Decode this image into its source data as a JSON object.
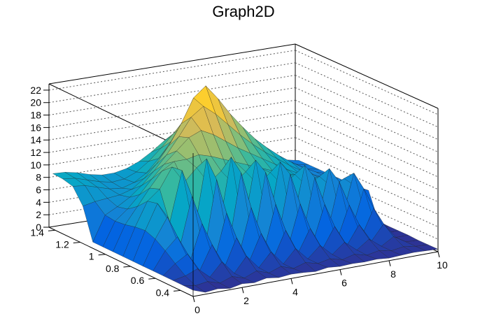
{
  "chart_data": {
    "type": "surface3d",
    "title": "Graph2D",
    "xlabel": "",
    "ylabel": "",
    "zlabel": "",
    "xlim": [
      0,
      10
    ],
    "ylim": [
      0.3,
      1.45
    ],
    "zlim": [
      0,
      23
    ],
    "x_ticks": [
      "0",
      "2",
      "4",
      "6",
      "8",
      "10"
    ],
    "y_ticks": [
      "0.4",
      "0.6",
      "0.8",
      "1",
      "1.2",
      "1.4"
    ],
    "z_ticks": [
      "0",
      "2",
      "4",
      "6",
      "8",
      "10",
      "12",
      "14",
      "16",
      "18",
      "20",
      "22"
    ],
    "grid": true,
    "colormap": [
      "#352a87",
      "#0363e1",
      "#1485d4",
      "#06a7c6",
      "#38b99e",
      "#92bf73",
      "#d9ba56",
      "#fcce2e",
      "#f9fb0e"
    ],
    "x_grid": [
      0,
      0.5,
      1,
      1.5,
      2,
      2.5,
      3,
      3.5,
      4,
      4.5,
      5,
      5.5,
      6,
      6.5,
      7,
      7.5,
      8,
      8.5,
      9,
      9.5,
      10
    ],
    "y_grid": [
      0.3,
      0.38,
      0.46,
      0.54,
      0.62,
      0.7,
      0.78,
      0.86,
      0.94,
      1.02,
      1.1,
      1.18,
      1.26,
      1.34,
      1.42
    ],
    "z_grid": [
      [
        1.0,
        0.3,
        0.5,
        0.2,
        0.6,
        0.4,
        0.8,
        0.5,
        0.7,
        0.6,
        0.4,
        0.7,
        0.5,
        0.6,
        0.5,
        0.6,
        0.4,
        0.5,
        0.6,
        0.5,
        0.4
      ],
      [
        1.0,
        0.6,
        0.9,
        0.3,
        1.0,
        0.4,
        1.2,
        0.5,
        1.2,
        0.5,
        1.1,
        0.6,
        1.0,
        0.5,
        1.0,
        0.5,
        0.9,
        0.5,
        0.8,
        0.5,
        0.4
      ],
      [
        1.0,
        1.4,
        2.2,
        0.5,
        2.6,
        0.4,
        2.8,
        0.6,
        2.8,
        0.5,
        2.6,
        0.6,
        2.4,
        0.6,
        2.2,
        0.6,
        2.0,
        0.5,
        1.7,
        0.5,
        0.4
      ],
      [
        1.0,
        2.6,
        3.8,
        0.8,
        4.6,
        0.5,
        5.0,
        0.7,
        5.0,
        0.6,
        4.8,
        0.7,
        4.4,
        0.7,
        4.0,
        0.6,
        3.6,
        0.6,
        3.0,
        0.5,
        0.5
      ],
      [
        1.0,
        3.9,
        5.8,
        1.4,
        7.2,
        0.8,
        8.2,
        1.0,
        8.4,
        0.8,
        8.2,
        0.9,
        7.6,
        0.8,
        6.8,
        0.7,
        6.0,
        0.6,
        4.8,
        0.5,
        0.5
      ],
      [
        1.0,
        5.0,
        8.2,
        3.0,
        10.8,
        1.6,
        12.8,
        1.8,
        13.2,
        1.4,
        12.6,
        1.4,
        11.6,
        1.2,
        10.4,
        1.0,
        9.0,
        0.8,
        7.2,
        0.6,
        0.5
      ],
      [
        1.0,
        5.6,
        9.6,
        6.2,
        14.2,
        4.0,
        15.4,
        3.6,
        15.0,
        3.0,
        13.8,
        2.6,
        12.8,
        2.4,
        11.6,
        2.0,
        10.4,
        1.8,
        9.0,
        1.4,
        0.6
      ],
      [
        1.0,
        5.4,
        9.2,
        10.8,
        14.0,
        11.2,
        13.2,
        10.4,
        12.0,
        9.6,
        11.2,
        8.8,
        10.4,
        8.0,
        9.4,
        7.2,
        8.4,
        6.4,
        7.4,
        5.8,
        4.8
      ],
      [
        1.0,
        5.0,
        7.6,
        10.2,
        12.6,
        13.8,
        13.8,
        14.2,
        13.6,
        12.8,
        12.0,
        11.2,
        10.4,
        9.6,
        8.8,
        8.0,
        7.2,
        6.4,
        5.6,
        5.0,
        4.6
      ],
      [
        1.0,
        4.8,
        6.4,
        8.4,
        10.6,
        12.6,
        14.4,
        16.2,
        17.0,
        16.0,
        14.6,
        13.2,
        12.0,
        10.8,
        9.6,
        8.4,
        7.4,
        6.4,
        5.6,
        5.0,
        4.6
      ],
      [
        1.0,
        5.0,
        6.0,
        7.2,
        8.8,
        10.8,
        13.0,
        15.6,
        18.4,
        19.8,
        18.2,
        16.2,
        14.2,
        12.4,
        10.8,
        9.4,
        8.0,
        6.8,
        5.8,
        5.0,
        4.6
      ],
      [
        6.0,
        6.4,
        6.6,
        6.8,
        7.4,
        8.8,
        10.8,
        13.4,
        16.6,
        20.4,
        22.0,
        19.6,
        16.8,
        14.4,
        12.2,
        10.4,
        8.8,
        7.4,
        6.2,
        5.2,
        4.6
      ],
      [
        8.4,
        8.2,
        7.6,
        7.0,
        6.8,
        7.4,
        8.6,
        10.6,
        13.0,
        16.0,
        18.0,
        16.8,
        14.8,
        12.8,
        11.0,
        9.4,
        8.0,
        6.8,
        5.8,
        5.0,
        4.6
      ],
      [
        8.8,
        8.6,
        8.0,
        7.4,
        7.0,
        7.2,
        8.0,
        9.4,
        11.2,
        13.2,
        14.6,
        14.0,
        12.8,
        11.4,
        10.0,
        8.8,
        7.6,
        6.6,
        5.8,
        5.0,
        4.6
      ],
      [
        8.9,
        8.8,
        8.4,
        7.8,
        7.4,
        7.4,
        7.8,
        8.6,
        9.8,
        11.2,
        12.2,
        12.0,
        11.2,
        10.2,
        9.2,
        8.2,
        7.2,
        6.4,
        5.6,
        5.0,
        4.6
      ]
    ]
  }
}
